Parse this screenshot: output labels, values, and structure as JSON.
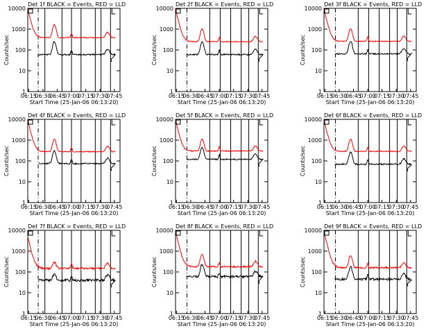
{
  "chart_data": {
    "type": "line",
    "ylabel": "Counts/sec",
    "xlabel": "Start Time (25-Jan-06 06:13:20)",
    "y_scale": "log",
    "ylim": [
      1,
      10000
    ],
    "y_ticks": [
      "1",
      "10",
      "100",
      "1000",
      "10000"
    ],
    "x_range_min": [
      374,
      471
    ],
    "x_tick_labels": [
      "06:15",
      "06:30",
      "06:45",
      "07:00",
      "07:15",
      "07:30",
      "07:45"
    ],
    "x_tick_min": [
      375,
      390,
      405,
      420,
      435,
      450,
      465
    ],
    "colors": {
      "events": "#000000",
      "lld": "#ff0000"
    },
    "panels": [
      {
        "title": "Det 1f BLACK = Events, RED = LLD",
        "events_base": 60,
        "lld_base": 390,
        "start": 9000,
        "noise": 0.05,
        "peak": 4.2,
        "dash_min": 385,
        "vlines_min": [
          392,
          410,
          420,
          430,
          445,
          451,
          461
        ]
      },
      {
        "title": "Det 2f BLACK = Events, RED = LLD",
        "events_base": 60,
        "lld_base": 250,
        "start": 9000,
        "noise": 0.05,
        "peak": 4.0,
        "dash_min": 386,
        "vlines_min": [
          410,
          421,
          432,
          443,
          451,
          461
        ]
      },
      {
        "title": "Det 3f BLACK = Events, RED = LLD",
        "events_base": 65,
        "lld_base": 260,
        "start": 9000,
        "noise": 0.05,
        "peak": 4.0,
        "dash_min": 386,
        "vlines_min": [
          410,
          421,
          432,
          443,
          451,
          461
        ]
      },
      {
        "title": "Det 4f BLACK = Events, RED = LLD",
        "events_base": 75,
        "lld_base": 280,
        "start": 9000,
        "noise": 0.05,
        "peak": 4.0,
        "dash_min": 385,
        "vlines_min": [
          392,
          410,
          420,
          430,
          445,
          451,
          461
        ]
      },
      {
        "title": "Det 5f BLACK = Events, RED = LLD",
        "events_base": 120,
        "lld_base": 300,
        "start": 9000,
        "noise": 0.05,
        "peak": 3.8,
        "dash_min": 386,
        "vlines_min": [
          410,
          421,
          432,
          443,
          451,
          461
        ]
      },
      {
        "title": "Det 6f BLACK = Events, RED = LLD",
        "events_base": 70,
        "lld_base": 290,
        "start": 9000,
        "noise": 0.05,
        "peak": 3.8,
        "dash_min": 386,
        "vlines_min": [
          410,
          421,
          432,
          443,
          451,
          461
        ]
      },
      {
        "title": "Det 7f BLACK = Events, RED = LLD",
        "events_base": 40,
        "lld_base": 150,
        "start": 5000,
        "noise": 0.11,
        "peak": 2.0,
        "dash_min": 385,
        "vlines_min": [
          392,
          410,
          420,
          430,
          445,
          451,
          461
        ]
      },
      {
        "title": "Det 8f BLACK = Events, RED = LLD",
        "events_base": 60,
        "lld_base": 180,
        "start": 9000,
        "noise": 0.09,
        "peak": 4.0,
        "dash_min": 386,
        "vlines_min": [
          410,
          421,
          432,
          443,
          451,
          461
        ]
      },
      {
        "title": "Det 9f BLACK = Events, RED = LLD",
        "events_base": 45,
        "lld_base": 160,
        "start": 9000,
        "noise": 0.09,
        "peak": 3.8,
        "dash_min": 386,
        "vlines_min": [
          410,
          421,
          432,
          443,
          451,
          461
        ]
      }
    ]
  }
}
